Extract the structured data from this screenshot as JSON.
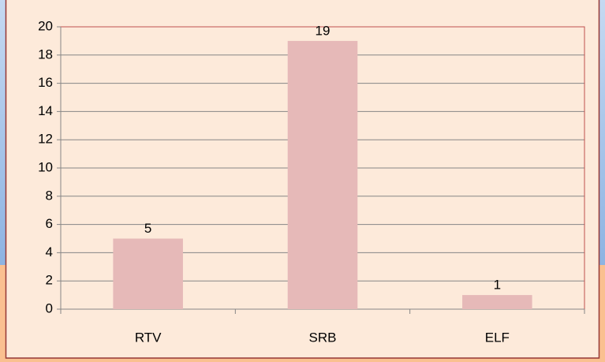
{
  "chart_data": {
    "type": "bar",
    "categories": [
      "RTV",
      "SRB",
      "ELF"
    ],
    "values": [
      5,
      19,
      1
    ],
    "color": "#e6b9b8",
    "ylim": [
      0,
      20
    ],
    "yticks": [
      0,
      2,
      4,
      6,
      8,
      10,
      12,
      14,
      16,
      18,
      20
    ],
    "grid": true,
    "data_labels": true
  }
}
